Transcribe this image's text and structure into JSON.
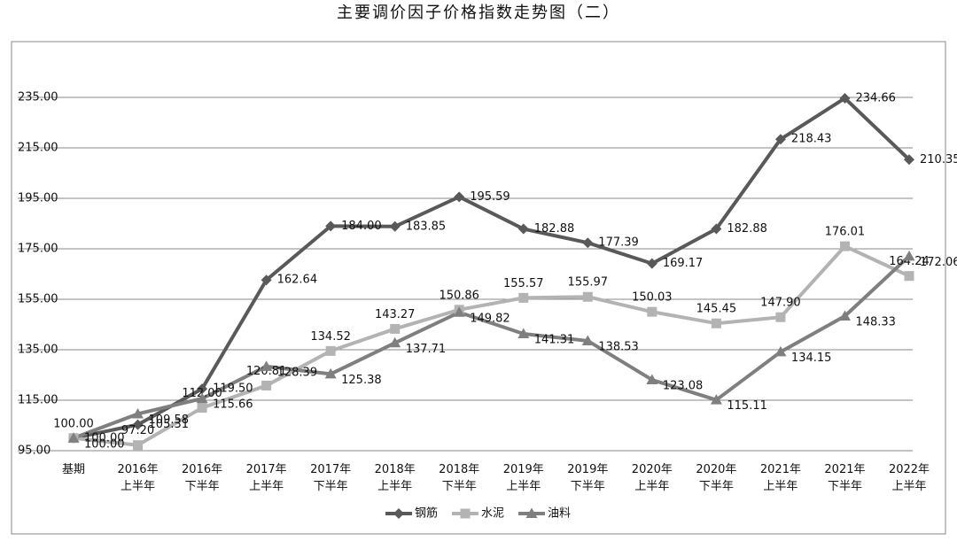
{
  "chart_data": {
    "type": "line",
    "title": "主要调价因子价格指数走势图（二）",
    "categories": [
      [
        "基期"
      ],
      [
        "2016年",
        "上半年"
      ],
      [
        "2016年",
        "下半年"
      ],
      [
        "2017年",
        "上半年"
      ],
      [
        "2017年",
        "下半年"
      ],
      [
        "2018年",
        "上半年"
      ],
      [
        "2018年",
        "下半年"
      ],
      [
        "2019年",
        "上半年"
      ],
      [
        "2019年",
        "下半年"
      ],
      [
        "2020年",
        "上半年"
      ],
      [
        "2020年",
        "下半年"
      ],
      [
        "2021年",
        "上半年"
      ],
      [
        "2021年",
        "下半年"
      ],
      [
        "2022年",
        "上半年"
      ]
    ],
    "series": [
      {
        "name": "钢筋",
        "color": "#595959",
        "marker": "diamond",
        "values": [
          100,
          105.31,
          119.5,
          162.64,
          184,
          183.85,
          195.59,
          182.88,
          177.39,
          169.17,
          182.88,
          218.43,
          234.66,
          210.35
        ],
        "value_labels": [
          "100.00",
          "105.31",
          "119.50",
          "162.64",
          "184.00",
          "183.85",
          "195.59",
          "182.88",
          "177.39",
          "169.17",
          "182.88",
          "218.43",
          "234.66",
          "210.35"
        ]
      },
      {
        "name": "水泥",
        "color": "#b3b3b3",
        "marker": "square",
        "values": [
          100,
          97.2,
          112,
          120.81,
          134.52,
          143.27,
          150.86,
          155.57,
          155.97,
          150.03,
          145.45,
          147.9,
          176.01,
          164.24
        ],
        "value_labels": [
          "100.00",
          "97.20",
          "112.00",
          "120.81",
          "134.52",
          "143.27",
          "150.86",
          "155.57",
          "155.97",
          "150.03",
          "145.45",
          "147.90",
          "176.01",
          "164.24"
        ]
      },
      {
        "name": "油料",
        "color": "#7f7f7f",
        "marker": "triangle",
        "values": [
          100,
          109.58,
          115.66,
          128.39,
          125.38,
          137.71,
          149.82,
          141.31,
          138.53,
          123.08,
          115.11,
          134.15,
          148.33,
          172.06
        ],
        "value_labels": [
          "100.00",
          "109.58",
          "115.66",
          "128.39",
          "125.38",
          "137.71",
          "149.82",
          "141.31",
          "138.53",
          "123.08",
          "115.11",
          "134.15",
          "148.33",
          "172.06"
        ]
      }
    ],
    "ylim": [
      95,
      255
    ],
    "yticks": [
      {
        "value": 95,
        "label": "95.00"
      },
      {
        "value": 115,
        "label": "115.00"
      },
      {
        "value": 135,
        "label": "135.00"
      },
      {
        "value": 155,
        "label": "155.00"
      },
      {
        "value": 175,
        "label": "175.00"
      },
      {
        "value": 195,
        "label": "195.00"
      },
      {
        "value": 215,
        "label": "215.00"
      },
      {
        "value": 235,
        "label": "235.00"
      }
    ],
    "grid": true,
    "legend": "bottom"
  }
}
